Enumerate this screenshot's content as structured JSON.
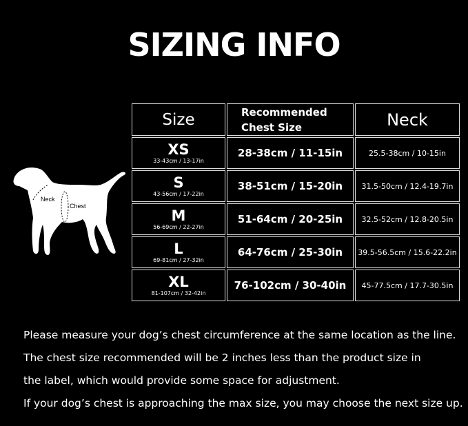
{
  "title": "SIZING INFO",
  "table": {
    "headers": {
      "size": "Size",
      "chest": [
        "Recommended",
        "Chest Size"
      ],
      "neck": "Neck"
    },
    "rows": [
      {
        "size": "XS",
        "product": "33-43cm / 13-17in",
        "chest": "28-38cm / 11-15in",
        "neck": "25.5-38cm / 10-15in"
      },
      {
        "size": "S",
        "product": "43-56cm / 17-22in",
        "chest": "38-51cm / 15-20in",
        "neck": "31.5-50cm / 12.4-19.7in"
      },
      {
        "size": "M",
        "product": "56-69cm / 22-27in",
        "chest": "51-64cm / 20-25in",
        "neck": "32.5-52cm / 12.8-20.5in"
      },
      {
        "size": "L",
        "product": "69-81cm / 27-32in",
        "chest": "64-76cm / 25-30in",
        "neck": "39.5-56.5cm / 15.6-22.2in"
      },
      {
        "size": "XL",
        "product": "81-107cm / 32-42in",
        "chest": "76-102cm / 30-40in",
        "neck": "45-77.5cm / 17.7-30.5in"
      }
    ]
  },
  "dog": {
    "neck_label": "Neck",
    "chest_label": "Chest"
  },
  "notes": [
    "Please measure your dog’s chest circumference at the same location as the line.",
    "The chest size recommended will be 2 inches less than the product size in",
    "the label, which would provide some space for adjustment.",
    "If your dog’s chest is approaching the max size, you may choose the next size up."
  ]
}
